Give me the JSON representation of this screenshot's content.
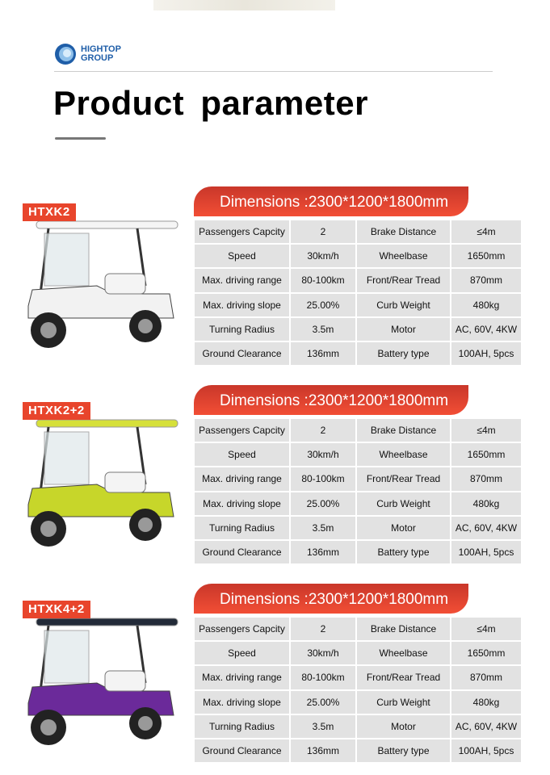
{
  "header": {
    "logo_line1": "HIGHTOP",
    "logo_line2": "GROUP",
    "title": "Product  parameter"
  },
  "colors": {
    "accent": "#e8452c",
    "logo_blue": "#1f5ea8",
    "cell_bg": "#e2e2e2"
  },
  "products": [
    {
      "model": "HTXK2",
      "cart_color": "#f2f2f2",
      "roof_color": "#f5f5f5",
      "dimensions": "Dimensions :2300*1200*1800mm",
      "rows": [
        [
          "Passengers Capcity",
          "2",
          "Brake Distance",
          "≤4m"
        ],
        [
          "Speed",
          "30km/h",
          "Wheelbase",
          "1650mm"
        ],
        [
          "Max. driving range",
          "80-100km",
          "Front/Rear Tread",
          "870mm"
        ],
        [
          "Max. driving slope",
          "25.00%",
          "Curb Weight",
          "480kg"
        ],
        [
          "Turning Radius",
          "3.5m",
          "Motor",
          "AC, 60V, 4KW"
        ],
        [
          "Ground Clearance",
          "136mm",
          "Battery type",
          "100AH, 5pcs"
        ]
      ]
    },
    {
      "model": "HTXK2+2",
      "cart_color": "#c7d62a",
      "roof_color": "#d6e03a",
      "dimensions": "Dimensions :2300*1200*1800mm",
      "rows": [
        [
          "Passengers Capcity",
          "2",
          "Brake Distance",
          "≤4m"
        ],
        [
          "Speed",
          "30km/h",
          "Wheelbase",
          "1650mm"
        ],
        [
          "Max. driving range",
          "80-100km",
          "Front/Rear Tread",
          "870mm"
        ],
        [
          "Max. driving slope",
          "25.00%",
          "Curb Weight",
          "480kg"
        ],
        [
          "Turning Radius",
          "3.5m",
          "Motor",
          "AC, 60V, 4KW"
        ],
        [
          "Ground Clearance",
          "136mm",
          "Battery type",
          "100AH, 5pcs"
        ]
      ]
    },
    {
      "model": "HTXK4+2",
      "cart_color": "#6b2a9a",
      "roof_color": "#222a38",
      "dimensions": "Dimensions :2300*1200*1800mm",
      "rows": [
        [
          "Passengers Capcity",
          "2",
          "Brake Distance",
          "≤4m"
        ],
        [
          "Speed",
          "30km/h",
          "Wheelbase",
          "1650mm"
        ],
        [
          "Max. driving range",
          "80-100km",
          "Front/Rear Tread",
          "870mm"
        ],
        [
          "Max. driving slope",
          "25.00%",
          "Curb Weight",
          "480kg"
        ],
        [
          "Turning Radius",
          "3.5m",
          "Motor",
          "AC, 60V, 4KW"
        ],
        [
          "Ground Clearance",
          "136mm",
          "Battery type",
          "100AH, 5pcs"
        ]
      ]
    }
  ]
}
